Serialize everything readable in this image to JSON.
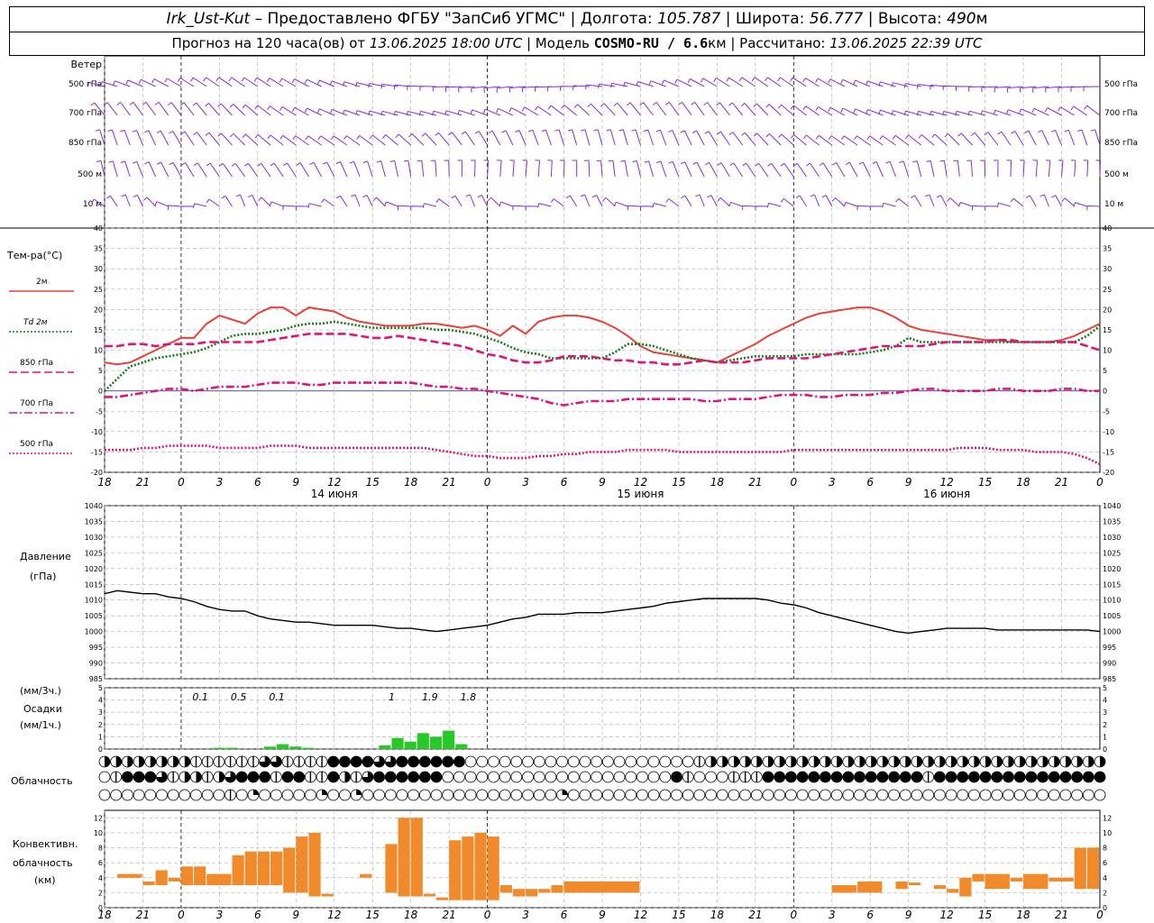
{
  "header": {
    "station": "Irk_Ust-Kut",
    "provider": "– Предоставлено ФГБУ \"ЗапСиб УГМС\"",
    "lon_label": "Долгота:",
    "lon": "105.787",
    "lat_label": "Широта:",
    "lat": "56.777",
    "alt_label": "Высота:",
    "alt": "490",
    "alt_unit": "м",
    "forecast_label": "Прогноз на 120 часа(ов) от",
    "forecast_time": "13.06.2025 18:00 UTC",
    "model_label": "Модель",
    "model_name": "COSMO-RU / 6.6",
    "model_unit": "км",
    "calc_label": "Рассчитано:",
    "calc_time": "13.06.2025 22:39 UTC"
  },
  "wind": {
    "title": "Ветер",
    "levels": [
      "500 гПа",
      "700 гПа",
      "850 гПа",
      "500 м",
      "10   м"
    ]
  },
  "temp": {
    "title": "Тем-ра(°С)",
    "legend": [
      {
        "label": "2м",
        "color": "#e8403a",
        "style": "solid"
      },
      {
        "label": "Td  2м",
        "color": "#1a7a1a",
        "style": "dotted"
      },
      {
        "label": "850 гПа",
        "color": "#e0147a",
        "style": "dashed"
      },
      {
        "label": "700 гПа",
        "color": "#e0147a",
        "style": "dashdot"
      },
      {
        "label": "500 гПа",
        "color": "#e0147a",
        "style": "dotted"
      }
    ],
    "ticks": [
      "40",
      "35",
      "30",
      "25",
      "20",
      "15",
      "10",
      "5",
      "0",
      "-5",
      "-10",
      "-15",
      "-20"
    ]
  },
  "pressure": {
    "title1": "Давление",
    "title2": "(гПа)",
    "ticks": [
      "1040",
      "1035",
      "1030",
      "1025",
      "1020",
      "1015",
      "1010",
      "1005",
      "1000",
      "995",
      "990",
      "985"
    ]
  },
  "precip": {
    "t1": "(мм/3ч.)",
    "t2": "Осадки",
    "t3": "(мм/1ч.)",
    "ticks": [
      "5",
      "4",
      "3",
      "2",
      "1",
      "0"
    ],
    "labels": [
      "0.1",
      "0.5",
      "0.1",
      "1",
      "1.9",
      "1.8"
    ]
  },
  "cloud": {
    "title": "Облачность"
  },
  "conv": {
    "t1": "Конвективн.",
    "t2": "облачность",
    "t3": "(км)",
    "ticks": [
      "12",
      "10",
      "8",
      "6",
      "4",
      "2",
      "0"
    ]
  },
  "time_axis": {
    "hours": [
      "18",
      "21",
      "0",
      "3",
      "6",
      "9",
      "12",
      "15",
      "18",
      "21",
      "0",
      "3",
      "6",
      "9",
      "12",
      "15",
      "18",
      "21",
      "0",
      "3",
      "6",
      "9",
      "12",
      "15",
      "18",
      "21",
      "0"
    ],
    "days": [
      "14 июня",
      "15 июня",
      "16 июня"
    ]
  },
  "chart_data": {
    "type": "line",
    "x_hours_from_start": [
      0,
      3,
      6,
      9,
      12,
      15,
      18,
      21,
      24,
      27,
      30,
      33,
      36,
      39,
      42,
      45,
      48,
      51,
      54,
      57,
      60,
      63,
      66,
      69,
      72,
      75,
      78
    ],
    "temperature": {
      "x_hours": [
        0,
        1,
        2,
        3,
        4,
        5,
        6,
        7,
        8,
        9,
        10,
        11,
        12,
        13,
        14,
        15,
        16,
        17,
        18,
        19,
        20,
        21,
        22,
        23,
        24,
        25,
        26,
        27,
        28,
        29,
        30,
        31,
        32,
        33,
        34,
        35,
        36,
        37,
        38,
        39,
        40,
        41,
        42,
        43,
        44,
        45,
        46,
        47,
        48,
        49,
        50,
        51,
        52,
        53,
        54,
        55,
        56,
        57,
        58,
        59,
        60,
        61,
        62,
        63,
        64,
        65,
        66,
        67,
        68,
        69,
        70,
        71,
        72,
        73,
        74,
        75,
        76,
        77,
        78
      ],
      "series": [
        {
          "name": "2м",
          "values": [
            7,
            6.5,
            7,
            8.5,
            10,
            11.5,
            13,
            13,
            16.5,
            18.5,
            17.5,
            16.5,
            19,
            20.5,
            20.5,
            18.5,
            20.5,
            20,
            19.5,
            18,
            17,
            16.5,
            16,
            16,
            16,
            16.5,
            16.5,
            16,
            15.5,
            16,
            15,
            13.5,
            16,
            14,
            17,
            18,
            18.5,
            18.5,
            18,
            17,
            15.5,
            13.5,
            11,
            9.5,
            9,
            8.5,
            8,
            7.5,
            7,
            8.5,
            10,
            11.5,
            13.5,
            15,
            16.5,
            18,
            19,
            19.5,
            20,
            20.5,
            20.5,
            19.5,
            18,
            16,
            15,
            14.5,
            14,
            13.5,
            13,
            12.5,
            12.5,
            12,
            12,
            12,
            12,
            12.5,
            13.5,
            15,
            16.5
          ]
        },
        {
          "name": "Td  2м",
          "values": [
            0,
            3,
            6,
            7,
            8,
            8.5,
            9,
            9.5,
            10.5,
            12,
            13.5,
            14,
            14,
            14.5,
            15,
            16,
            16.5,
            16.5,
            17,
            16.5,
            16,
            15.5,
            15.5,
            15.5,
            15.5,
            15.5,
            15,
            15,
            14.5,
            14,
            13,
            12,
            10.5,
            9.5,
            9,
            8,
            8,
            8,
            8,
            8,
            9.5,
            11.5,
            11.5,
            11,
            10,
            9,
            8,
            7.5,
            7,
            7.5,
            8,
            8.5,
            8.5,
            8.5,
            8.5,
            9,
            9,
            9,
            9,
            9,
            9.5,
            10,
            11,
            13,
            12,
            12,
            12,
            12,
            12,
            12,
            12,
            12,
            12,
            12,
            12,
            12,
            12,
            13.5,
            16
          ]
        },
        {
          "name": "850 гПа",
          "values": [
            11,
            11,
            11.5,
            11.5,
            11,
            11.5,
            11.5,
            11.5,
            12,
            12,
            12,
            12,
            12,
            12.5,
            13,
            13.5,
            14,
            14,
            14,
            14,
            13.5,
            13,
            13,
            13.5,
            13,
            12.5,
            12,
            11.5,
            11,
            10,
            9,
            8.5,
            7.5,
            7,
            7,
            7.5,
            8.5,
            8.5,
            8.5,
            8,
            7.5,
            7.5,
            7,
            7,
            6.5,
            6.5,
            7,
            7.5,
            7,
            7,
            7,
            7.5,
            8,
            8,
            8,
            8,
            8.5,
            9,
            9.5,
            10,
            10.5,
            11,
            11,
            11,
            11,
            11.5,
            12,
            12,
            12,
            12,
            12.5,
            12.5,
            12,
            12,
            12,
            12,
            12,
            11,
            10
          ]
        },
        {
          "name": "700 гПа",
          "values": [
            -1.5,
            -1.5,
            -1,
            -0.5,
            0,
            0.5,
            0.5,
            0,
            0.5,
            1,
            1,
            1,
            1.5,
            2,
            2,
            2,
            1.5,
            1.5,
            2,
            2,
            2,
            2,
            2,
            2,
            2,
            1.5,
            1,
            1,
            0.5,
            0.5,
            0,
            -0.5,
            -1,
            -1.5,
            -2,
            -3,
            -3.5,
            -3,
            -2.5,
            -2.5,
            -2.5,
            -2,
            -2,
            -2,
            -2,
            -2,
            -2,
            -2.5,
            -2.5,
            -2,
            -2,
            -2,
            -1.5,
            -1,
            -1,
            -1,
            -1.5,
            -1.5,
            -1,
            -1,
            -1,
            -0.5,
            -0.5,
            0,
            0.5,
            0.5,
            0,
            0,
            0,
            0,
            0.5,
            0.5,
            0,
            0,
            0,
            0.5,
            0.5,
            0,
            0
          ]
        },
        {
          "name": "500 гПа",
          "values": [
            -14.5,
            -14.5,
            -14.5,
            -14,
            -14,
            -13.5,
            -13.5,
            -13.5,
            -13.5,
            -14,
            -14,
            -14,
            -14,
            -13.5,
            -13.5,
            -13.5,
            -14,
            -14,
            -14,
            -14,
            -14,
            -14,
            -14,
            -14,
            -14,
            -14,
            -14.5,
            -15,
            -15.5,
            -16,
            -16,
            -16.5,
            -16.5,
            -16.5,
            -16,
            -16,
            -15.5,
            -15.5,
            -15,
            -15,
            -15,
            -14.5,
            -14.5,
            -14.5,
            -14.5,
            -15,
            -15,
            -15,
            -15,
            -15,
            -15,
            -15,
            -15,
            -15,
            -14.5,
            -14.5,
            -14.5,
            -14.5,
            -14.5,
            -14.5,
            -14.5,
            -14.5,
            -14.5,
            -14.5,
            -14.5,
            -14.5,
            -14.5,
            -14,
            -14,
            -14,
            -14.5,
            -14.5,
            -14.5,
            -15,
            -15,
            -15,
            -15.5,
            -16.5,
            -18
          ]
        }
      ],
      "ylim": [
        -20,
        40
      ]
    },
    "pressure": {
      "x_hours": [
        0,
        1,
        2,
        3,
        4,
        5,
        6,
        7,
        8,
        9,
        10,
        11,
        12,
        13,
        14,
        15,
        16,
        17,
        18,
        19,
        20,
        21,
        22,
        23,
        24,
        25,
        26,
        27,
        28,
        29,
        30,
        31,
        32,
        33,
        34,
        35,
        36,
        37,
        38,
        39,
        40,
        41,
        42,
        43,
        44,
        45,
        46,
        47,
        48,
        49,
        50,
        51,
        52,
        53,
        54,
        55,
        56,
        57,
        58,
        59,
        60,
        61,
        62,
        63,
        64,
        65,
        66,
        67,
        68,
        69,
        70,
        71,
        72,
        73,
        74,
        75,
        76,
        77,
        78
      ],
      "values": [
        1012,
        1013,
        1012.5,
        1012,
        1012,
        1011,
        1010.5,
        1009.5,
        1008,
        1007,
        1006.5,
        1006.5,
        1005,
        1004,
        1003.5,
        1003,
        1003,
        1002.5,
        1002,
        1002,
        1002,
        1002,
        1001.5,
        1001,
        1001,
        1000.5,
        1000,
        1000.5,
        1001,
        1001.5,
        1002,
        1003,
        1004,
        1004.5,
        1005.5,
        1005.5,
        1005.5,
        1006,
        1006,
        1006,
        1006.5,
        1007,
        1007.5,
        1008,
        1009,
        1009.5,
        1010,
        1010.5,
        1010.5,
        1010.5,
        1010.5,
        1010.5,
        1010,
        1009,
        1008.5,
        1007.5,
        1006,
        1005,
        1004,
        1003,
        1002,
        1001,
        1000,
        999.5,
        1000,
        1000.5,
        1001,
        1001,
        1001,
        1001,
        1000.5,
        1000.5,
        1000.5,
        1000.5,
        1000.5,
        1000.5,
        1000.5,
        1000.5,
        1000
      ],
      "ylim": [
        985,
        1040
      ]
    },
    "precipitation_mm_per_1h": {
      "x_hours": [
        9,
        10,
        13,
        14,
        15,
        16,
        22,
        23,
        24,
        25,
        26,
        27,
        28
      ],
      "values": [
        0.1,
        0.1,
        0.2,
        0.4,
        0.2,
        0.1,
        0.3,
        0.9,
        0.6,
        1.3,
        1.0,
        1.5,
        0.4
      ],
      "totals_3h": [
        {
          "hour": 9,
          "label": "0.1"
        },
        {
          "hour": 12,
          "label": "0.5"
        },
        {
          "hour": 15,
          "label": "0.1"
        },
        {
          "hour": 24,
          "label": "1"
        },
        {
          "hour": 27,
          "label": "1.9"
        },
        {
          "hour": 30,
          "label": "1.8"
        }
      ],
      "ylim": [
        0,
        5
      ]
    },
    "convective_cloud_km": {
      "bars": [
        {
          "h0": 1,
          "h1": 3,
          "lo": 4,
          "hi": 4.5
        },
        {
          "h0": 3,
          "h1": 4,
          "lo": 3,
          "hi": 3.5
        },
        {
          "h0": 4,
          "h1": 5,
          "lo": 3,
          "hi": 5
        },
        {
          "h0": 5,
          "h1": 6,
          "lo": 3.5,
          "hi": 4
        },
        {
          "h0": 6,
          "h1": 7,
          "lo": 3,
          "hi": 5.5
        },
        {
          "h0": 7,
          "h1": 8,
          "lo": 3,
          "hi": 5.5
        },
        {
          "h0": 8,
          "h1": 10,
          "lo": 3,
          "hi": 4.5
        },
        {
          "h0": 10,
          "h1": 11,
          "lo": 3,
          "hi": 7
        },
        {
          "h0": 11,
          "h1": 12,
          "lo": 3,
          "hi": 7.5
        },
        {
          "h0": 12,
          "h1": 13,
          "lo": 3,
          "hi": 7.5
        },
        {
          "h0": 13,
          "h1": 14,
          "lo": 3,
          "hi": 7.5
        },
        {
          "h0": 14,
          "h1": 15,
          "lo": 2,
          "hi": 8
        },
        {
          "h0": 15,
          "h1": 16,
          "lo": 2,
          "hi": 9.5
        },
        {
          "h0": 16,
          "h1": 17,
          "lo": 1.5,
          "hi": 10
        },
        {
          "h0": 17,
          "h1": 18,
          "lo": 1.5,
          "hi": 1.5
        },
        {
          "h0": 20,
          "h1": 21,
          "lo": 4,
          "hi": 4.5
        },
        {
          "h0": 22,
          "h1": 23,
          "lo": 2,
          "hi": 8.5
        },
        {
          "h0": 23,
          "h1": 24,
          "lo": 1.5,
          "hi": 12
        },
        {
          "h0": 24,
          "h1": 25,
          "lo": 1.5,
          "hi": 12
        },
        {
          "h0": 25,
          "h1": 26,
          "lo": 1.5,
          "hi": 1.5
        },
        {
          "h0": 26,
          "h1": 27,
          "lo": 1,
          "hi": 1
        },
        {
          "h0": 27,
          "h1": 28,
          "lo": 1,
          "hi": 9
        },
        {
          "h0": 28,
          "h1": 29,
          "lo": 1,
          "hi": 9.5
        },
        {
          "h0": 29,
          "h1": 30,
          "lo": 1,
          "hi": 10
        },
        {
          "h0": 30,
          "h1": 31,
          "lo": 1,
          "hi": 9.5
        },
        {
          "h0": 31,
          "h1": 32,
          "lo": 2,
          "hi": 3
        },
        {
          "h0": 32,
          "h1": 33,
          "lo": 1.5,
          "hi": 2.5
        },
        {
          "h0": 33,
          "h1": 34,
          "lo": 1.5,
          "hi": 2.5
        },
        {
          "h0": 34,
          "h1": 35,
          "lo": 2,
          "hi": 2.5
        },
        {
          "h0": 35,
          "h1": 36,
          "lo": 2,
          "hi": 3
        },
        {
          "h0": 36,
          "h1": 42,
          "lo": 2,
          "hi": 3.5
        },
        {
          "h0": 57,
          "h1": 59,
          "lo": 2,
          "hi": 3
        },
        {
          "h0": 59,
          "h1": 61,
          "lo": 2,
          "hi": 3.5
        },
        {
          "h0": 62,
          "h1": 63,
          "lo": 2.5,
          "hi": 3.5
        },
        {
          "h0": 63,
          "h1": 64,
          "lo": 3,
          "hi": 3
        },
        {
          "h0": 65,
          "h1": 66,
          "lo": 2.5,
          "hi": 3
        },
        {
          "h0": 66,
          "h1": 67,
          "lo": 2,
          "hi": 2.5
        },
        {
          "h0": 67,
          "h1": 68,
          "lo": 1.5,
          "hi": 4
        },
        {
          "h0": 68,
          "h1": 69,
          "lo": 3.5,
          "hi": 4.5
        },
        {
          "h0": 69,
          "h1": 71,
          "lo": 2.5,
          "hi": 4.5
        },
        {
          "h0": 71,
          "h1": 72,
          "lo": 3.5,
          "hi": 4
        },
        {
          "h0": 72,
          "h1": 74,
          "lo": 2.5,
          "hi": 4.5
        },
        {
          "h0": 74,
          "h1": 76,
          "lo": 3.5,
          "hi": 4
        },
        {
          "h0": 76,
          "h1": 77,
          "lo": 2.5,
          "hi": 8
        },
        {
          "h0": 77,
          "h1": 78,
          "lo": 2.5,
          "hi": 8
        }
      ],
      "ylim": [
        0,
        13
      ]
    },
    "clouds": {
      "rows": [
        "HHHHHHHHLLLLLLMMLLLLFFFFMMFFFFFFEEEEEEEEEEEEEEEEEEEELHHHHHHHHHHHHHHHHHHHHHHHHHHHHHHHHHHH",
        "ELFFFMLHHLHMFFFLFFLLFHLMFFFFFFEEEEEEEEEEEEEEEEEEEEFLEEELLLFFFFFFFFFFFFFFLFFFFFFFFFFFFFFF",
        "EEEEEEEEEEELEQEEEEEQEEQEEEEEEEEEEEEEEEEEQEEEEEEEEEEEEEEEEEEEEEEEEEEEEEEEEEEEEEEEEEEEEEEE"
      ],
      "legend_codes": {
        "E": "empty",
        "Q": "quarter",
        "H": "half",
        "M": "three-quarter",
        "F": "full",
        "L": "vertical half-split"
      }
    }
  }
}
